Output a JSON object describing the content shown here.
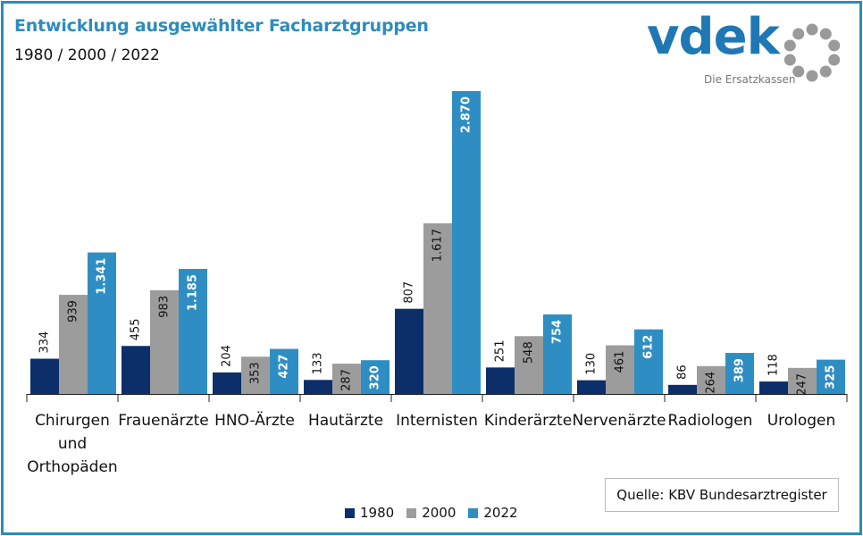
{
  "header": {
    "title": "Entwicklung ausgewählter Facharztgruppen",
    "subtitle": "1980 / 2000 / 2022"
  },
  "logo": {
    "word": "vdek",
    "tagline": "Die Ersatzkassen",
    "color": "#1f78b4",
    "ring_color": "#9a9a9a"
  },
  "source": "Quelle: KBV Bundesarztregister",
  "chart_data": {
    "type": "bar",
    "title": "Entwicklung ausgewählter Facharztgruppen",
    "subtitle": "1980 / 2000 / 2022",
    "categories": [
      "Chirurgen und Orthopäden",
      "Frauenärzte",
      "HNO-Ärzte",
      "Hautärzte",
      "Internisten",
      "Kinderärzte",
      "Nervenärzte",
      "Radiologen",
      "Urologen"
    ],
    "category_lines": [
      [
        "Chirurgen",
        "und",
        "Orthopäden"
      ],
      [
        "Frauenärzte"
      ],
      [
        "HNO-Ärzte"
      ],
      [
        "Hautärzte"
      ],
      [
        "Internisten"
      ],
      [
        "Kinderärzte"
      ],
      [
        "Nervenärzte"
      ],
      [
        "Radiologen"
      ],
      [
        "Urologen"
      ]
    ],
    "series": [
      {
        "name": "1980",
        "color": "#0c2f6a",
        "values": [
          334,
          455,
          204,
          133,
          807,
          251,
          130,
          86,
          118
        ],
        "labels": [
          "334",
          "455",
          "204",
          "133",
          "807",
          "251",
          "130",
          "86",
          "118"
        ],
        "label_position": "above"
      },
      {
        "name": "2000",
        "color": "#9c9c9c",
        "values": [
          939,
          983,
          353,
          287,
          1617,
          548,
          461,
          264,
          247
        ],
        "labels": [
          "939",
          "983",
          "353",
          "287",
          "1.617",
          "548",
          "461",
          "264",
          "247"
        ],
        "label_position": "inside"
      },
      {
        "name": "2022",
        "color": "#2e8ec3",
        "values": [
          1341,
          1185,
          427,
          320,
          2870,
          754,
          612,
          389,
          325
        ],
        "labels": [
          "1.341",
          "1.185",
          "427",
          "320",
          "2.870",
          "754",
          "612",
          "389",
          "325"
        ],
        "label_position": "inside"
      }
    ],
    "ylim": [
      0,
      2870
    ],
    "grid": false,
    "legend_position": "bottom",
    "axis_color": "#222222"
  }
}
